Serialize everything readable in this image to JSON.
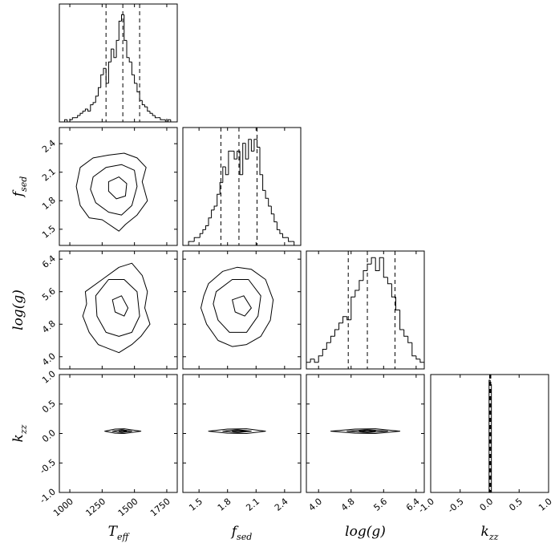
{
  "chart_data": {
    "type": "corner",
    "parameters": [
      {
        "label": "T",
        "subscript": "eff",
        "lim": [
          919,
          1831
        ],
        "ticks": [
          1000,
          1250,
          1500,
          1750
        ],
        "quantiles": [
          1280,
          1410,
          1540
        ],
        "hist": {
          "bins": [
            960,
            980,
            1000,
            1020,
            1040,
            1060,
            1080,
            1100,
            1120,
            1140,
            1160,
            1180,
            1200,
            1220,
            1240,
            1260,
            1280,
            1300,
            1320,
            1340,
            1360,
            1380,
            1400,
            1420,
            1440,
            1460,
            1480,
            1500,
            1520,
            1540,
            1560,
            1580,
            1600,
            1620,
            1640,
            1660,
            1680,
            1700,
            1720,
            1740,
            1760,
            1780,
            1800
          ],
          "counts": [
            1,
            0,
            1,
            2,
            2,
            3,
            4,
            5,
            6,
            5,
            8,
            9,
            12,
            16,
            22,
            25,
            18,
            28,
            34,
            30,
            38,
            47,
            50,
            38,
            30,
            28,
            22,
            18,
            14,
            10,
            8,
            7,
            5,
            4,
            3,
            2,
            2,
            1,
            1,
            0,
            1,
            0
          ],
          "ylim": [
            0,
            55
          ]
        }
      },
      {
        "label": "f",
        "subscript": "sed",
        "lim": [
          1.33,
          2.57
        ],
        "ticks": [
          1.5,
          1.8,
          2.1,
          2.4
        ],
        "quantiles": [
          1.73,
          1.92,
          2.11
        ],
        "hist": {
          "bins": [
            1.36,
            1.39,
            1.42,
            1.45,
            1.48,
            1.51,
            1.54,
            1.57,
            1.6,
            1.63,
            1.66,
            1.69,
            1.72,
            1.75,
            1.78,
            1.81,
            1.84,
            1.87,
            1.9,
            1.93,
            1.96,
            1.99,
            2.02,
            2.05,
            2.08,
            2.11,
            2.14,
            2.17,
            2.2,
            2.23,
            2.26,
            2.29,
            2.32,
            2.35,
            2.38,
            2.41,
            2.44,
            2.47,
            2.5,
            2.53,
            2.56
          ],
          "counts": [
            0,
            1,
            1,
            2,
            2,
            3,
            4,
            5,
            7,
            9,
            10,
            13,
            16,
            20,
            18,
            24,
            24,
            22,
            24,
            18,
            26,
            22,
            27,
            24,
            27,
            25,
            18,
            14,
            12,
            10,
            8,
            6,
            4,
            3,
            2,
            2,
            1,
            1,
            0,
            0
          ],
          "ylim": [
            0,
            30
          ]
        }
      },
      {
        "label": "log(g)",
        "lim": [
          3.7,
          6.6
        ],
        "ticks": [
          {
            "value": 4,
            "label": "4.0"
          },
          4.8,
          5.6,
          6.4
        ],
        "quantiles": [
          4.73,
          5.2,
          5.88
        ],
        "hist": {
          "bins": [
            3.7,
            3.8,
            3.9,
            4.0,
            4.1,
            4.2,
            4.3,
            4.4,
            4.5,
            4.6,
            4.7,
            4.8,
            4.9,
            5.0,
            5.1,
            5.2,
            5.3,
            5.4,
            5.5,
            5.6,
            5.7,
            5.8,
            5.9,
            6.0,
            6.1,
            6.2,
            6.3,
            6.4,
            6.5,
            6.6
          ],
          "counts": [
            2,
            3,
            2,
            4,
            6,
            8,
            10,
            12,
            14,
            16,
            15,
            22,
            24,
            27,
            30,
            32,
            34,
            30,
            34,
            28,
            26,
            22,
            18,
            12,
            10,
            8,
            4,
            3,
            2
          ],
          "ylim": [
            0,
            36
          ]
        }
      },
      {
        "label": "k",
        "subscript": "zz",
        "lim": [
          -1,
          1
        ],
        "ticks": [
          {
            "value": -1,
            "label": "-1.0"
          },
          -0.5,
          {
            "value": 0,
            "label": "0.0"
          },
          0.5,
          {
            "value": 1,
            "label": "1.0"
          }
        ],
        "quantiles": [
          0.0,
          0.01,
          0.02
        ],
        "hist": {
          "bins": [
            -0.01,
            0.01,
            0.03
          ],
          "counts": [
            100,
            96
          ],
          "ylim": [
            0,
            105
          ]
        }
      }
    ],
    "pairs": [
      {
        "x": 0,
        "y": 1,
        "contours": [
          {
            "x": [
              1080,
              1180,
              1300,
              1420,
              1520,
              1590,
              1560,
              1600,
              1520,
              1430,
              1380,
              1250,
              1150,
              1080,
              1050
            ],
            "y": [
              2.15,
              2.25,
              2.28,
              2.3,
              2.25,
              2.15,
              2.0,
              1.8,
              1.65,
              1.55,
              1.48,
              1.6,
              1.62,
              1.75,
              1.95
            ]
          },
          {
            "x": [
              1180,
              1280,
              1400,
              1500,
              1520,
              1480,
              1400,
              1300,
              1200,
              1160
            ],
            "y": [
              2.05,
              2.15,
              2.18,
              2.12,
              1.95,
              1.75,
              1.65,
              1.68,
              1.78,
              1.92
            ]
          },
          {
            "x": [
              1300,
              1380,
              1440,
              1430,
              1360,
              1300
            ],
            "y": [
              2.0,
              2.05,
              1.98,
              1.85,
              1.82,
              1.9
            ]
          }
        ]
      },
      {
        "x": 0,
        "y": 2,
        "contours": [
          {
            "x": [
              1120,
              1250,
              1380,
              1480,
              1560,
              1600,
              1580,
              1620,
              1550,
              1480,
              1380,
              1300,
              1220,
              1150,
              1100,
              1130
            ],
            "y": [
              5.6,
              5.9,
              6.2,
              6.3,
              6.0,
              5.6,
              5.2,
              4.8,
              4.5,
              4.3,
              4.1,
              4.2,
              4.3,
              4.6,
              5.0,
              5.3
            ]
          },
          {
            "x": [
              1200,
              1300,
              1420,
              1520,
              1540,
              1480,
              1380,
              1280,
              1210
            ],
            "y": [
              5.5,
              5.9,
              5.9,
              5.6,
              5.0,
              4.6,
              4.5,
              4.6,
              5.0
            ]
          },
          {
            "x": [
              1330,
              1400,
              1450,
              1420,
              1350
            ],
            "y": [
              5.4,
              5.5,
              5.2,
              5.0,
              5.1
            ]
          }
        ]
      },
      {
        "x": 1,
        "y": 2,
        "contours": [
          {
            "x": [
              1.6,
              1.75,
              1.9,
              2.05,
              2.2,
              2.28,
              2.25,
              2.15,
              2.0,
              1.85,
              1.7,
              1.58,
              1.52,
              1.55
            ],
            "y": [
              5.8,
              6.1,
              6.2,
              6.15,
              5.9,
              5.4,
              4.9,
              4.5,
              4.3,
              4.25,
              4.4,
              4.8,
              5.2,
              5.5
            ]
          },
          {
            "x": [
              1.68,
              1.85,
              2.02,
              2.15,
              2.12,
              2.0,
              1.82,
              1.7,
              1.65
            ],
            "y": [
              5.6,
              5.9,
              5.9,
              5.5,
              5.0,
              4.6,
              4.6,
              4.9,
              5.3
            ]
          },
          {
            "x": [
              1.85,
              1.97,
              2.05,
              1.98,
              1.88
            ],
            "y": [
              5.4,
              5.5,
              5.2,
              5.0,
              5.1
            ]
          }
        ]
      },
      {
        "x": 0,
        "y": 3,
        "contours": [
          {
            "x": [
              1270,
              1350,
              1420,
              1550,
              1420,
              1350
            ],
            "y": [
              0.04,
              0.075,
              0.08,
              0.04,
              0.0,
              0.005
            ]
          },
          {
            "x": [
              1330,
              1400,
              1480,
              1400
            ],
            "y": [
              0.04,
              0.065,
              0.04,
              0.015
            ]
          },
          {
            "x": [
              1380,
              1410,
              1440,
              1410
            ],
            "y": [
              0.04,
              0.05,
              0.04,
              0.03
            ]
          }
        ]
      },
      {
        "x": 1,
        "y": 3,
        "contours": [
          {
            "x": [
              1.6,
              1.8,
              2.0,
              2.2,
              2.0,
              1.8
            ],
            "y": [
              0.04,
              0.075,
              0.08,
              0.04,
              0.0,
              0.005
            ]
          },
          {
            "x": [
              1.75,
              1.9,
              2.05,
              1.9
            ],
            "y": [
              0.04,
              0.065,
              0.04,
              0.015
            ]
          },
          {
            "x": [
              1.85,
              1.92,
              2.0,
              1.92
            ],
            "y": [
              0.04,
              0.05,
              0.04,
              0.03
            ]
          }
        ]
      },
      {
        "x": 2,
        "y": 3,
        "contours": [
          {
            "x": [
              4.3,
              4.9,
              5.4,
              6.0,
              5.4,
              4.9
            ],
            "y": [
              0.04,
              0.075,
              0.08,
              0.04,
              0.0,
              0.005
            ]
          },
          {
            "x": [
              4.7,
              5.2,
              5.7,
              5.2
            ],
            "y": [
              0.04,
              0.065,
              0.04,
              0.015
            ]
          },
          {
            "x": [
              5.0,
              5.2,
              5.4,
              5.2
            ],
            "y": [
              0.04,
              0.05,
              0.04,
              0.03
            ]
          }
        ]
      }
    ]
  }
}
